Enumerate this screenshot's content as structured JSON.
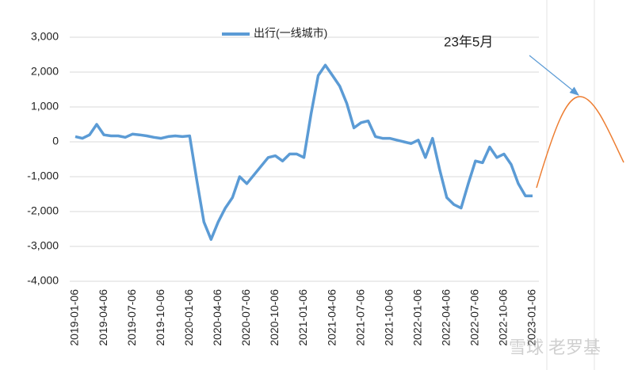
{
  "chart_data": {
    "type": "line",
    "categories": [
      "2019-01-06",
      null,
      null,
      null,
      "2019-04-06",
      null,
      null,
      null,
      "2019-07-06",
      null,
      null,
      null,
      "2019-10-06",
      null,
      null,
      null,
      "2020-01-06",
      null,
      null,
      null,
      "2020-04-06",
      null,
      null,
      null,
      "2020-07-06",
      null,
      null,
      null,
      "2020-10-06",
      null,
      null,
      null,
      "2021-01-06",
      null,
      null,
      null,
      "2021-04-06",
      null,
      null,
      null,
      "2021-07-06",
      null,
      null,
      null,
      "2021-10-06",
      null,
      null,
      null,
      "2022-01-06",
      null,
      null,
      null,
      "2022-04-06",
      null,
      null,
      null,
      "2022-07-06",
      null,
      null,
      null,
      "2022-10-06",
      null,
      null,
      null,
      "2023-01-06"
    ],
    "series": [
      {
        "name": "出行(一线城市)",
        "color": "#5b9bd5",
        "values": [
          150,
          100,
          200,
          500,
          200,
          170,
          170,
          130,
          220,
          200,
          170,
          130,
          100,
          150,
          170,
          150,
          170,
          -1100,
          -2300,
          -2800,
          -2300,
          -1900,
          -1600,
          -1000,
          -1200,
          -950,
          -700,
          -450,
          -400,
          -550,
          -350,
          -350,
          -450,
          800,
          1900,
          2200,
          1900,
          1600,
          1100,
          400,
          550,
          600,
          150,
          100,
          100,
          50,
          0,
          -50,
          50,
          -450,
          100,
          -800,
          -1600,
          -1800,
          -1900,
          -1200,
          -550,
          -600,
          -150,
          -450,
          -350,
          -650,
          -1200,
          -1550,
          -1550
        ]
      }
    ],
    "ylim": [
      -4000,
      3000
    ],
    "yticks": [
      {
        "value": -4000,
        "label": "-4,000"
      },
      {
        "value": -3000,
        "label": "-3,000"
      },
      {
        "value": -2000,
        "label": "-2,000"
      },
      {
        "value": -1000,
        "label": "-1,000"
      },
      0,
      {
        "value": 1000,
        "label": "1,000"
      },
      {
        "value": 2000,
        "label": "2,000"
      },
      {
        "value": 3000,
        "label": "3,000"
      }
    ],
    "grid": true,
    "annotation": "23年5月",
    "watermark": "雪球 老罗基"
  }
}
